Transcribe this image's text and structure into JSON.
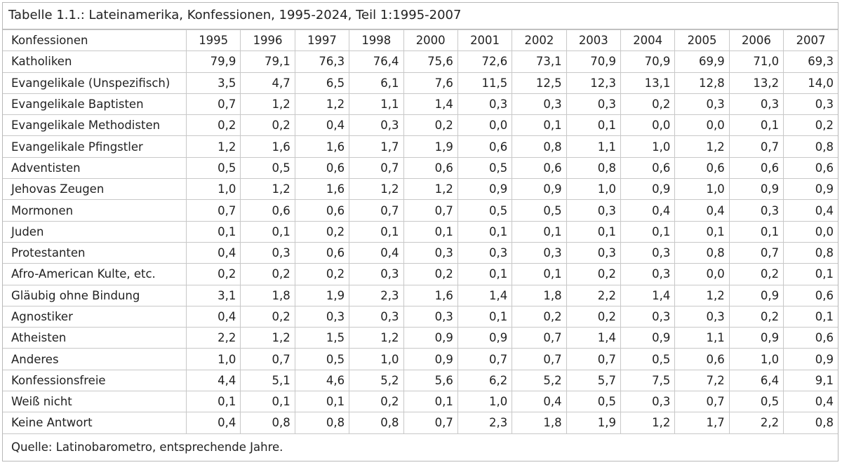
{
  "title": "Tabelle 1.1.: Lateinamerika, Konfessionen, 1995-2024, Teil 1:1995-2007",
  "table": {
    "header": [
      "Konfessionen",
      "1995",
      "1996",
      "1997",
      "1998",
      "2000",
      "2001",
      "2002",
      "2003",
      "2004",
      "2005",
      "2006",
      "2007"
    ],
    "rows": [
      [
        "Katholiken",
        "79,9",
        "79,1",
        "76,3",
        "76,4",
        "75,6",
        "72,6",
        "73,1",
        "70,9",
        "70,9",
        "69,9",
        "71,0",
        "69,3"
      ],
      [
        "Evangelikale (Unspezifisch)",
        "3,5",
        "4,7",
        "6,5",
        "6,1",
        "7,6",
        "11,5",
        "12,5",
        "12,3",
        "13,1",
        "12,8",
        "13,2",
        "14,0"
      ],
      [
        "Evangelikale Baptisten",
        "0,7",
        "1,2",
        "1,2",
        "1,1",
        "1,4",
        "0,3",
        "0,3",
        "0,3",
        "0,2",
        "0,3",
        "0,3",
        "0,3"
      ],
      [
        "Evangelikale Methodisten",
        "0,2",
        "0,2",
        "0,4",
        "0,3",
        "0,2",
        "0,0",
        "0,1",
        "0,1",
        "0,0",
        "0,0",
        "0,1",
        "0,2"
      ],
      [
        "Evangelikale Pfingstler",
        "1,2",
        "1,6",
        "1,6",
        "1,7",
        "1,9",
        "0,6",
        "0,8",
        "1,1",
        "1,0",
        "1,2",
        "0,7",
        "0,8"
      ],
      [
        "Adventisten",
        "0,5",
        "0,5",
        "0,6",
        "0,7",
        "0,6",
        "0,5",
        "0,6",
        "0,8",
        "0,6",
        "0,6",
        "0,6",
        "0,6"
      ],
      [
        "Jehovas Zeugen",
        "1,0",
        "1,2",
        "1,6",
        "1,2",
        "1,2",
        "0,9",
        "0,9",
        "1,0",
        "0,9",
        "1,0",
        "0,9",
        "0,9"
      ],
      [
        "Mormonen",
        "0,7",
        "0,6",
        "0,6",
        "0,7",
        "0,7",
        "0,5",
        "0,5",
        "0,3",
        "0,4",
        "0,4",
        "0,3",
        "0,4"
      ],
      [
        "Juden",
        "0,1",
        "0,1",
        "0,2",
        "0,1",
        "0,1",
        "0,1",
        "0,1",
        "0,1",
        "0,1",
        "0,1",
        "0,1",
        "0,0"
      ],
      [
        "Protestanten",
        "0,4",
        "0,3",
        "0,6",
        "0,4",
        "0,3",
        "0,3",
        "0,3",
        "0,3",
        "0,3",
        "0,8",
        "0,7",
        "0,8"
      ],
      [
        "Afro-American Kulte, etc.",
        "0,2",
        "0,2",
        "0,2",
        "0,3",
        "0,2",
        "0,1",
        "0,1",
        "0,2",
        "0,3",
        "0,0",
        "0,2",
        "0,1"
      ],
      [
        "Gläubig ohne Bindung",
        "3,1",
        "1,8",
        "1,9",
        "2,3",
        "1,6",
        "1,4",
        "1,8",
        "2,2",
        "1,4",
        "1,2",
        "0,9",
        "0,6"
      ],
      [
        "Agnostiker",
        "0,4",
        "0,2",
        "0,3",
        "0,3",
        "0,3",
        "0,1",
        "0,2",
        "0,2",
        "0,3",
        "0,3",
        "0,2",
        "0,1"
      ],
      [
        "Atheisten",
        "2,2",
        "1,2",
        "1,5",
        "1,2",
        "0,9",
        "0,9",
        "0,7",
        "1,4",
        "0,9",
        "1,1",
        "0,9",
        "0,6"
      ],
      [
        "Anderes",
        "1,0",
        "0,7",
        "0,5",
        "1,0",
        "0,9",
        "0,7",
        "0,7",
        "0,7",
        "0,5",
        "0,6",
        "1,0",
        "0,9"
      ],
      [
        "Konfessionsfreie",
        "4,4",
        "5,1",
        "4,6",
        "5,2",
        "5,6",
        "6,2",
        "5,2",
        "5,7",
        "7,5",
        "7,2",
        "6,4",
        "9,1"
      ],
      [
        "Weiß nicht",
        "0,1",
        "0,1",
        "0,1",
        "0,2",
        "0,1",
        "1,0",
        "0,4",
        "0,5",
        "0,3",
        "0,7",
        "0,5",
        "0,4"
      ],
      [
        "Keine Antwort",
        "0,4",
        "0,8",
        "0,8",
        "0,8",
        "0,7",
        "2,3",
        "1,8",
        "1,9",
        "1,2",
        "1,7",
        "2,2",
        "0,8"
      ]
    ]
  },
  "source": "Quelle: Latinobarometro, entsprechende Jahre."
}
